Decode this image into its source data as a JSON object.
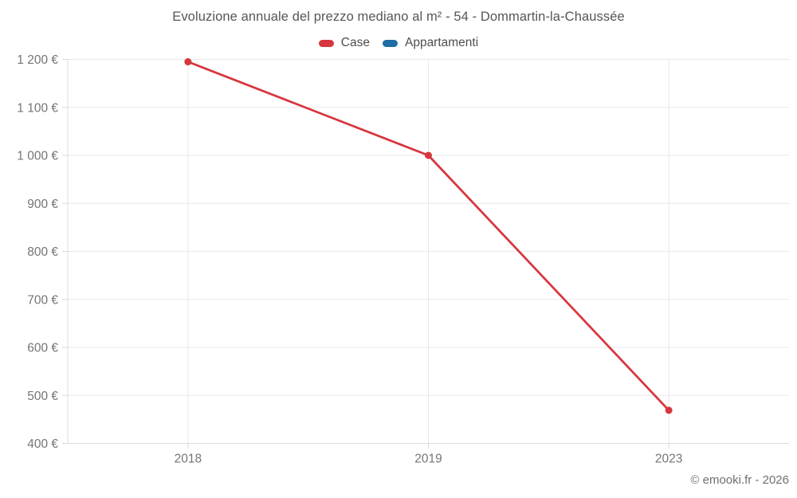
{
  "title": "Evoluzione annuale del prezzo mediano al m² - 54 - Dommartin-la-Chaussée",
  "legend": [
    {
      "label": "Case",
      "color": "#d7363e"
    },
    {
      "label": "Appartamenti",
      "color": "#1c6ea4"
    }
  ],
  "footer": "© emooki.fr - 2026",
  "colors": {
    "case_red": "#d7363e",
    "appartamenti_blue": "#1c6ea4",
    "grid": "#e9e9e9",
    "axis": "#dcdcdc",
    "tick": "#d8d8d8",
    "tick_label": "#757575",
    "title_text": "#565656",
    "footer_text": "#6f6f6f"
  },
  "chart_data": {
    "type": "line",
    "categories": [
      "2018",
      "2019",
      "2023"
    ],
    "series": [
      {
        "name": "Case",
        "color": "#d7363e",
        "values": [
          1195,
          1000,
          469
        ]
      },
      {
        "name": "Appartamenti",
        "color": "#1c6ea4",
        "values": []
      }
    ],
    "title": "Evoluzione annuale del prezzo mediano al m² - 54 - Dommartin-la-Chaussée",
    "xlabel": "",
    "ylabel": "",
    "ylim": [
      400,
      1200
    ],
    "y_step": 100,
    "y_tick_labels": [
      "400 €",
      "500 €",
      "600 €",
      "700 €",
      "800 €",
      "900 €",
      "1 000 €",
      "1 100 €",
      "1 200 €"
    ],
    "y_suffix": " €",
    "grid": true,
    "legend_position": "top",
    "marker": "circle"
  }
}
